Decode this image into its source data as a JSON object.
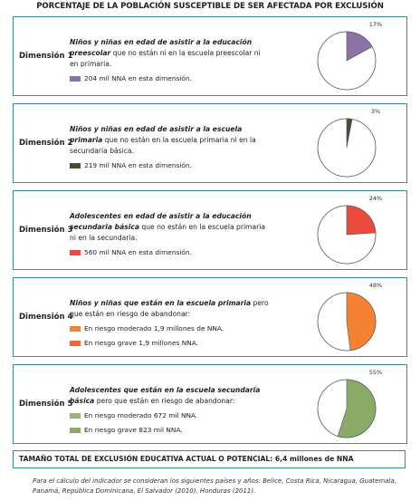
{
  "title": "PORCENTAJE DE LA POBLACIÓN SUSCEPTIBLE DE SER AFECTADA POR EXCLUSIÓN",
  "dimensions": [
    {
      "name": "Dimensión 1",
      "emphasis": "Niños y niñas en edad de asistir a la educación preescolar",
      "text": "que no están ni en la escuela preescolar ni en primaria.",
      "legend": [
        {
          "color": "#8b73a8",
          "label": "204 mil NNA en esta dimensión."
        }
      ],
      "value": 17,
      "value_label": "17%",
      "color": "#8b73a8"
    },
    {
      "name": "Dimensión 2",
      "emphasis": "Niños y niñas en edad de asistir a la escuela primaria",
      "text": "que no están en la escuela primaria ni en la secundaria básica.",
      "legend": [
        {
          "color": "#4d4a36",
          "label": "219 mil NNA en esta dimensión."
        }
      ],
      "value": 3,
      "value_label": "3%",
      "color": "#4d4a36"
    },
    {
      "name": "Dimensión 3",
      "emphasis": "Adolescentes en edad de asistir a la educación secundaria básica",
      "text": "que no están en la escuela primaria ni en la secundaria.",
      "legend": [
        {
          "color": "#e94c3d",
          "label": "560 mil NNA en esta dimensión."
        }
      ],
      "value": 24,
      "value_label": "24%",
      "color": "#e94c3d"
    },
    {
      "name": "Dimensión 4",
      "emphasis": "Niños y niñas que están en la escuela primaria",
      "text": "pero que están en riesgo de abandonar:",
      "legend": [
        {
          "color": "#f58233",
          "label": "En riesgo moderado 1,9 millones de NNA."
        },
        {
          "color": "#f26b2e",
          "label": "En riesgo grave 1,9 millones NNA."
        }
      ],
      "value": 48,
      "value_label": "48%",
      "color": "#f58233"
    },
    {
      "name": "Dimensión 5",
      "emphasis": "Adolescentes que están en la escuela secundaria básica",
      "text": "pero que están en riesgo de abandonar:",
      "legend": [
        {
          "color": "#9ab57a",
          "label": "En riesgo moderado 672 mil NNA."
        },
        {
          "color": "#8aab68",
          "label": "En riesgo grave 823 mil NNA."
        }
      ],
      "value": 55,
      "value_label": "55%",
      "color": "#8aab68"
    }
  ],
  "total": {
    "label": "TAMAÑO TOTAL DE EXCLUSIÓN EDUCATIVA ACTUAL O POTENCIAL:",
    "value": "6,4 millones de NNA"
  },
  "footnote": "Para el cálculo del indicador se consideran los siguientes países y años: Belice, Costa Rica, Nicaragua, Guatemala, Panamá, República Dominicana, El Salvador (2010), Honduras (2011)."
}
